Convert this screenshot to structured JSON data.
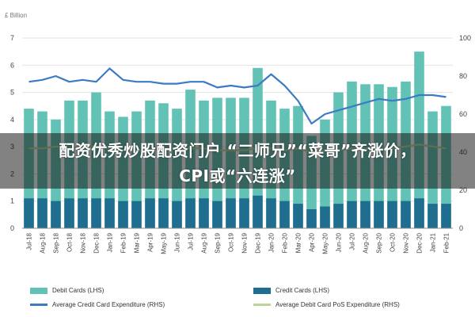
{
  "chart_data": {
    "type": "bar",
    "unit_label": "£ Billion",
    "categories": [
      "Jul-18",
      "Aug-18",
      "Sep-18",
      "Oct-18",
      "Nov-18",
      "Dec-18",
      "Jan-19",
      "Feb-19",
      "Mar-19",
      "Apr-19",
      "May-19",
      "Jun-19",
      "Jul-19",
      "Aug-19",
      "Sep-19",
      "Oct-19",
      "Nov-19",
      "Dec-19",
      "Jan-20",
      "Feb-20",
      "Mar-20",
      "Apr-20",
      "May-20",
      "Jun-20",
      "Jul-20",
      "Aug-20",
      "Sep-20",
      "Oct-20",
      "Nov-20",
      "Dec-20",
      "Jan-21",
      "Feb-21"
    ],
    "y_left": {
      "min": 0,
      "max": 7,
      "ticks": [
        0,
        1,
        2,
        3,
        4,
        5,
        6,
        7
      ]
    },
    "y_right": {
      "min": 0,
      "max": 100,
      "ticks": [
        0,
        20,
        40,
        60,
        80,
        100
      ]
    },
    "grid": true,
    "legend_position": "bottom",
    "series": [
      {
        "name": "Debit Cards (LHS)",
        "kind": "bar",
        "axis": "left",
        "color": "#62c2b5",
        "values": [
          4.4,
          4.3,
          4.0,
          4.7,
          4.7,
          5.0,
          4.3,
          4.1,
          4.3,
          4.7,
          4.6,
          4.4,
          5.1,
          4.7,
          4.8,
          4.8,
          4.8,
          5.9,
          4.7,
          4.4,
          4.5,
          3.4,
          4.0,
          5.0,
          5.4,
          5.3,
          5.3,
          5.2,
          5.4,
          6.5,
          4.3,
          4.5
        ]
      },
      {
        "name": "Credit Cards (LHS)",
        "kind": "bar",
        "axis": "left",
        "color": "#1f6e8f",
        "values": [
          1.1,
          1.1,
          1.0,
          1.1,
          1.1,
          1.1,
          1.1,
          1.0,
          1.0,
          1.1,
          1.1,
          1.0,
          1.1,
          1.1,
          1.0,
          1.1,
          1.1,
          1.2,
          1.1,
          1.0,
          0.9,
          0.7,
          0.8,
          0.9,
          1.0,
          1.0,
          1.0,
          1.0,
          1.0,
          1.1,
          0.9,
          0.9
        ]
      },
      {
        "name": "Average Credit Card Expenditure (RHS)",
        "kind": "line",
        "axis": "right",
        "color": "#3c7bc4",
        "values": [
          77,
          78,
          80,
          77,
          78,
          77,
          84,
          78,
          77,
          77,
          76,
          76,
          77,
          77,
          74,
          75,
          74,
          75,
          81,
          75,
          67,
          55,
          60,
          62,
          64,
          66,
          68,
          67,
          68,
          70,
          70,
          69
        ]
      },
      {
        "name": "Average Debit Card PoS Expenditure (RHS)",
        "kind": "line",
        "axis": "right",
        "color": "#b9d59a",
        "values": [
          42,
          42,
          43,
          42,
          43,
          43,
          42,
          41,
          41,
          41,
          42,
          42,
          42,
          42,
          41,
          41,
          41,
          42,
          42,
          41,
          42,
          40,
          41,
          41,
          42,
          42,
          41,
          42,
          43,
          44,
          43,
          42
        ]
      }
    ]
  },
  "overlay": {
    "line1": "配资优秀炒股配资门户 “二师兄”“菜哥”齐涨价，",
    "line2": "CPI或“六连涨”"
  }
}
